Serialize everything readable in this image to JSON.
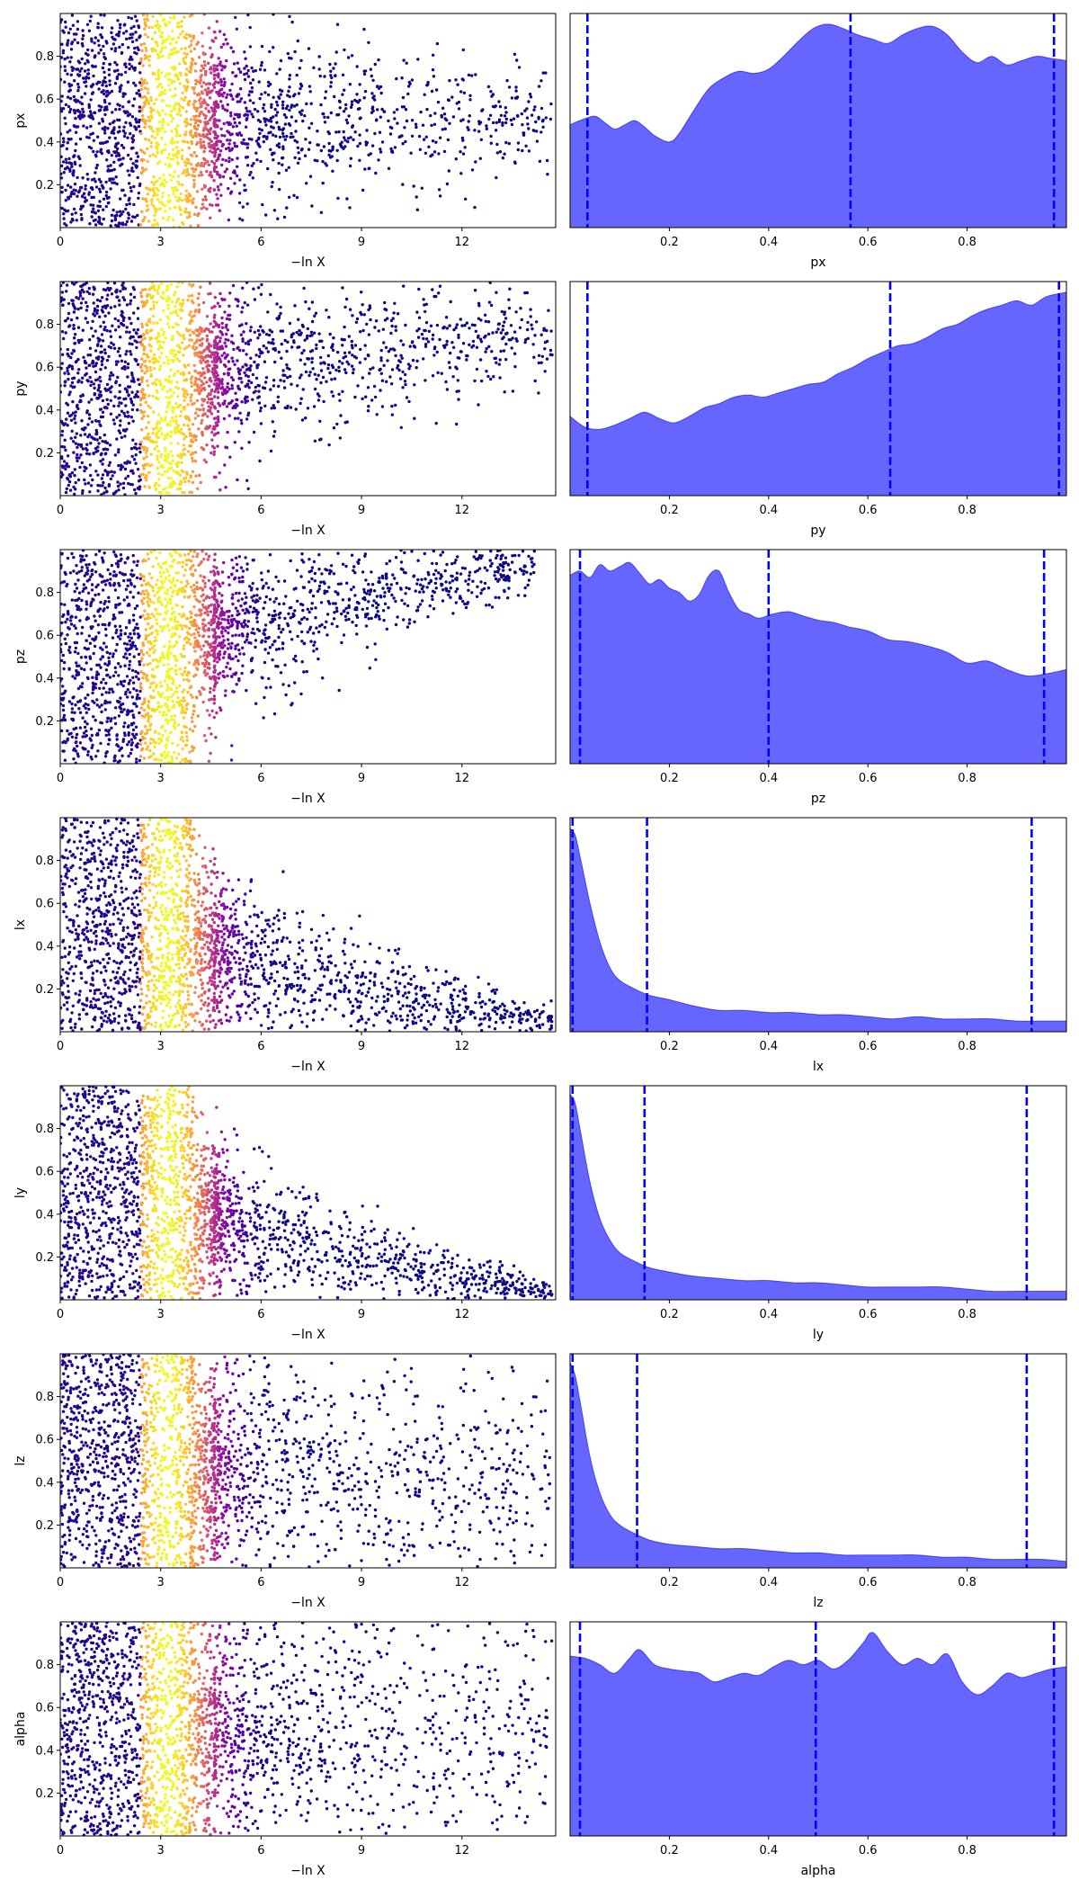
{
  "colors": {
    "kde_fill": "#6666ff",
    "kde_line": "#0000ff",
    "quantile_line": "#0000ff",
    "scatter_colormap": "plasma"
  },
  "chart_data": [
    {
      "type": "scatter",
      "id": "trace-px",
      "xlabel": "−ln X",
      "ylabel": "px",
      "xlim": [
        0,
        14.8
      ],
      "ylim": [
        0,
        1
      ],
      "xticks": [
        "0",
        "3",
        "6",
        "9",
        "12"
      ],
      "yticks": [
        "0.2",
        "0.4",
        "0.6",
        "0.8"
      ],
      "trend": {
        "start": 0.5,
        "end": 0.5,
        "spread_end": 0.12,
        "max_x": 14.7
      }
    },
    {
      "type": "area",
      "id": "kde-px",
      "xlabel": "px",
      "xlim": [
        0,
        1
      ],
      "ylim": [
        0,
        1
      ],
      "xticks": [
        "0.2",
        "0.4",
        "0.6",
        "0.8"
      ],
      "x": [
        0,
        0.02,
        0.05,
        0.07,
        0.09,
        0.11,
        0.13,
        0.15,
        0.17,
        0.2,
        0.22,
        0.25,
        0.28,
        0.31,
        0.34,
        0.37,
        0.4,
        0.43,
        0.46,
        0.49,
        0.52,
        0.55,
        0.58,
        0.61,
        0.64,
        0.67,
        0.7,
        0.73,
        0.76,
        0.79,
        0.82,
        0.85,
        0.88,
        0.91,
        0.94,
        0.97,
        1.0
      ],
      "y": [
        0.48,
        0.5,
        0.52,
        0.49,
        0.46,
        0.48,
        0.5,
        0.47,
        0.43,
        0.4,
        0.44,
        0.55,
        0.65,
        0.7,
        0.73,
        0.72,
        0.74,
        0.8,
        0.87,
        0.93,
        0.95,
        0.93,
        0.9,
        0.88,
        0.86,
        0.9,
        0.93,
        0.94,
        0.9,
        0.82,
        0.77,
        0.8,
        0.76,
        0.78,
        0.8,
        0.79,
        0.78
      ],
      "quantiles": [
        0.035,
        0.565,
        0.975
      ]
    },
    {
      "type": "scatter",
      "id": "trace-py",
      "xlabel": "−ln X",
      "ylabel": "py",
      "xlim": [
        0,
        14.8
      ],
      "ylim": [
        0,
        1
      ],
      "xticks": [
        "0",
        "3",
        "6",
        "9",
        "12"
      ],
      "yticks": [
        "0.2",
        "0.4",
        "0.6",
        "0.8"
      ],
      "trend": {
        "start": 0.5,
        "end": 0.75,
        "spread_end": 0.1,
        "max_x": 14.7
      }
    },
    {
      "type": "area",
      "id": "kde-py",
      "xlabel": "py",
      "xlim": [
        0,
        1
      ],
      "ylim": [
        0,
        1
      ],
      "xticks": [
        "0.2",
        "0.4",
        "0.6",
        "0.8"
      ],
      "x": [
        0,
        0.03,
        0.06,
        0.09,
        0.12,
        0.15,
        0.18,
        0.21,
        0.24,
        0.27,
        0.3,
        0.33,
        0.36,
        0.39,
        0.42,
        0.45,
        0.48,
        0.51,
        0.54,
        0.57,
        0.6,
        0.63,
        0.66,
        0.69,
        0.72,
        0.75,
        0.78,
        0.81,
        0.84,
        0.87,
        0.9,
        0.93,
        0.96,
        1.0
      ],
      "y": [
        0.37,
        0.32,
        0.31,
        0.33,
        0.36,
        0.39,
        0.36,
        0.34,
        0.37,
        0.41,
        0.43,
        0.46,
        0.47,
        0.46,
        0.48,
        0.5,
        0.52,
        0.53,
        0.57,
        0.6,
        0.64,
        0.67,
        0.7,
        0.71,
        0.74,
        0.78,
        0.8,
        0.84,
        0.87,
        0.89,
        0.91,
        0.89,
        0.93,
        0.95
      ],
      "quantiles": [
        0.035,
        0.645,
        0.985
      ]
    },
    {
      "type": "scatter",
      "id": "trace-pz",
      "xlabel": "−ln X",
      "ylabel": "pz",
      "xlim": [
        0,
        14.8
      ],
      "ylim": [
        0,
        1
      ],
      "xticks": [
        "0",
        "3",
        "6",
        "9",
        "12"
      ],
      "yticks": [
        "0.2",
        "0.4",
        "0.6",
        "0.8"
      ],
      "trend": {
        "start": 0.5,
        "end": 0.93,
        "spread_end": 0.06,
        "max_x": 14.2
      }
    },
    {
      "type": "area",
      "id": "kde-pz",
      "xlabel": "pz",
      "xlim": [
        0,
        1
      ],
      "ylim": [
        0,
        1
      ],
      "xticks": [
        "0.2",
        "0.4",
        "0.6",
        "0.8"
      ],
      "x": [
        0,
        0.02,
        0.04,
        0.06,
        0.08,
        0.1,
        0.12,
        0.14,
        0.16,
        0.18,
        0.2,
        0.22,
        0.24,
        0.26,
        0.28,
        0.3,
        0.32,
        0.34,
        0.36,
        0.38,
        0.41,
        0.44,
        0.47,
        0.5,
        0.53,
        0.56,
        0.6,
        0.64,
        0.68,
        0.72,
        0.76,
        0.8,
        0.84,
        0.88,
        0.92,
        0.96,
        1.0
      ],
      "y": [
        0.88,
        0.9,
        0.87,
        0.93,
        0.9,
        0.92,
        0.94,
        0.89,
        0.84,
        0.86,
        0.82,
        0.8,
        0.76,
        0.79,
        0.88,
        0.9,
        0.8,
        0.72,
        0.7,
        0.68,
        0.7,
        0.71,
        0.69,
        0.67,
        0.66,
        0.64,
        0.62,
        0.58,
        0.57,
        0.55,
        0.52,
        0.47,
        0.48,
        0.44,
        0.41,
        0.42,
        0.44
      ],
      "quantiles": [
        0.02,
        0.4,
        0.955
      ]
    },
    {
      "type": "scatter",
      "id": "trace-lx",
      "xlabel": "−ln X",
      "ylabel": "lx",
      "xlim": [
        0,
        14.8
      ],
      "ylim": [
        0,
        1
      ],
      "xticks": [
        "0",
        "3",
        "6",
        "9",
        "12"
      ],
      "yticks": [
        "0.2",
        "0.4",
        "0.6",
        "0.8"
      ],
      "trend": {
        "start": 0.5,
        "end": 0.04,
        "spread_end": 0.04,
        "max_x": 14.7
      }
    },
    {
      "type": "area",
      "id": "kde-lx",
      "xlabel": "lx",
      "xlim": [
        0,
        1
      ],
      "ylim": [
        0,
        1
      ],
      "xticks": [
        "0.2",
        "0.4",
        "0.6",
        "0.8"
      ],
      "x": [
        0,
        0.01,
        0.02,
        0.04,
        0.06,
        0.08,
        0.1,
        0.13,
        0.16,
        0.2,
        0.25,
        0.3,
        0.35,
        0.4,
        0.45,
        0.5,
        0.55,
        0.6,
        0.65,
        0.7,
        0.75,
        0.8,
        0.85,
        0.9,
        0.95,
        1.0
      ],
      "y": [
        0.95,
        0.92,
        0.82,
        0.6,
        0.42,
        0.3,
        0.24,
        0.2,
        0.17,
        0.15,
        0.12,
        0.1,
        0.1,
        0.09,
        0.09,
        0.08,
        0.08,
        0.07,
        0.06,
        0.07,
        0.06,
        0.06,
        0.06,
        0.05,
        0.05,
        0.05
      ],
      "quantiles": [
        0.005,
        0.155,
        0.93
      ]
    },
    {
      "type": "scatter",
      "id": "trace-ly",
      "xlabel": "−ln X",
      "ylabel": "ly",
      "xlim": [
        0,
        14.8
      ],
      "ylim": [
        0,
        1
      ],
      "xticks": [
        "0",
        "3",
        "6",
        "9",
        "12"
      ],
      "yticks": [
        "0.2",
        "0.4",
        "0.6",
        "0.8"
      ],
      "trend": {
        "start": 0.5,
        "end": 0.03,
        "spread_end": 0.03,
        "max_x": 14.7
      }
    },
    {
      "type": "area",
      "id": "kde-ly",
      "xlabel": "ly",
      "xlim": [
        0,
        1
      ],
      "ylim": [
        0,
        1
      ],
      "xticks": [
        "0.2",
        "0.4",
        "0.6",
        "0.8"
      ],
      "x": [
        0,
        0.01,
        0.02,
        0.04,
        0.06,
        0.08,
        0.1,
        0.13,
        0.16,
        0.2,
        0.25,
        0.3,
        0.35,
        0.4,
        0.45,
        0.5,
        0.55,
        0.6,
        0.65,
        0.7,
        0.75,
        0.8,
        0.85,
        0.9,
        0.95,
        1.0
      ],
      "y": [
        0.96,
        0.92,
        0.8,
        0.55,
        0.38,
        0.28,
        0.22,
        0.18,
        0.15,
        0.13,
        0.11,
        0.1,
        0.09,
        0.09,
        0.08,
        0.08,
        0.07,
        0.06,
        0.06,
        0.06,
        0.06,
        0.05,
        0.04,
        0.04,
        0.04,
        0.04
      ],
      "quantiles": [
        0.005,
        0.15,
        0.92
      ]
    },
    {
      "type": "scatter",
      "id": "trace-lz",
      "xlabel": "−ln X",
      "ylabel": "lz",
      "xlim": [
        0,
        14.8
      ],
      "ylim": [
        0,
        1
      ],
      "xticks": [
        "0",
        "3",
        "6",
        "9",
        "12"
      ],
      "yticks": [
        "0.2",
        "0.4",
        "0.6",
        "0.8"
      ],
      "trend": {
        "start": 0.5,
        "end": 0.4,
        "spread_end": 0.35,
        "max_x": 14.7
      }
    },
    {
      "type": "area",
      "id": "kde-lz",
      "xlabel": "lz",
      "xlim": [
        0,
        1
      ],
      "ylim": [
        0,
        1
      ],
      "xticks": [
        "0.2",
        "0.4",
        "0.6",
        "0.8"
      ],
      "x": [
        0,
        0.01,
        0.02,
        0.04,
        0.06,
        0.08,
        0.1,
        0.13,
        0.16,
        0.2,
        0.25,
        0.3,
        0.35,
        0.4,
        0.45,
        0.5,
        0.55,
        0.6,
        0.65,
        0.7,
        0.75,
        0.8,
        0.85,
        0.9,
        0.95,
        1.0
      ],
      "y": [
        0.96,
        0.9,
        0.78,
        0.52,
        0.35,
        0.25,
        0.2,
        0.16,
        0.13,
        0.11,
        0.1,
        0.09,
        0.09,
        0.08,
        0.07,
        0.07,
        0.06,
        0.06,
        0.06,
        0.06,
        0.05,
        0.05,
        0.04,
        0.04,
        0.04,
        0.03
      ],
      "quantiles": [
        0.005,
        0.135,
        0.92
      ]
    },
    {
      "type": "scatter",
      "id": "trace-alpha",
      "xlabel": "−ln X",
      "ylabel": "alpha",
      "xlim": [
        0,
        14.8
      ],
      "ylim": [
        0,
        1
      ],
      "xticks": [
        "0",
        "3",
        "6",
        "9",
        "12"
      ],
      "yticks": [
        "0.2",
        "0.4",
        "0.6",
        "0.8"
      ],
      "trend": {
        "start": 0.5,
        "end": 0.5,
        "spread_end": 0.45,
        "max_x": 14.7
      }
    },
    {
      "type": "area",
      "id": "kde-alpha",
      "xlabel": "alpha",
      "xlim": [
        0,
        1
      ],
      "ylim": [
        0,
        1
      ],
      "xticks": [
        "0.2",
        "0.4",
        "0.6",
        "0.8"
      ],
      "x": [
        0,
        0.03,
        0.06,
        0.09,
        0.12,
        0.14,
        0.17,
        0.2,
        0.23,
        0.26,
        0.29,
        0.32,
        0.35,
        0.38,
        0.41,
        0.44,
        0.47,
        0.5,
        0.53,
        0.56,
        0.59,
        0.61,
        0.64,
        0.67,
        0.7,
        0.73,
        0.76,
        0.79,
        0.82,
        0.85,
        0.88,
        0.91,
        0.94,
        0.97,
        1.0
      ],
      "y": [
        0.84,
        0.83,
        0.8,
        0.76,
        0.83,
        0.87,
        0.8,
        0.78,
        0.77,
        0.76,
        0.72,
        0.74,
        0.76,
        0.75,
        0.79,
        0.82,
        0.8,
        0.82,
        0.78,
        0.82,
        0.9,
        0.95,
        0.86,
        0.8,
        0.83,
        0.8,
        0.85,
        0.72,
        0.66,
        0.7,
        0.76,
        0.74,
        0.76,
        0.78,
        0.79
      ],
      "quantiles": [
        0.02,
        0.495,
        0.975
      ]
    }
  ]
}
